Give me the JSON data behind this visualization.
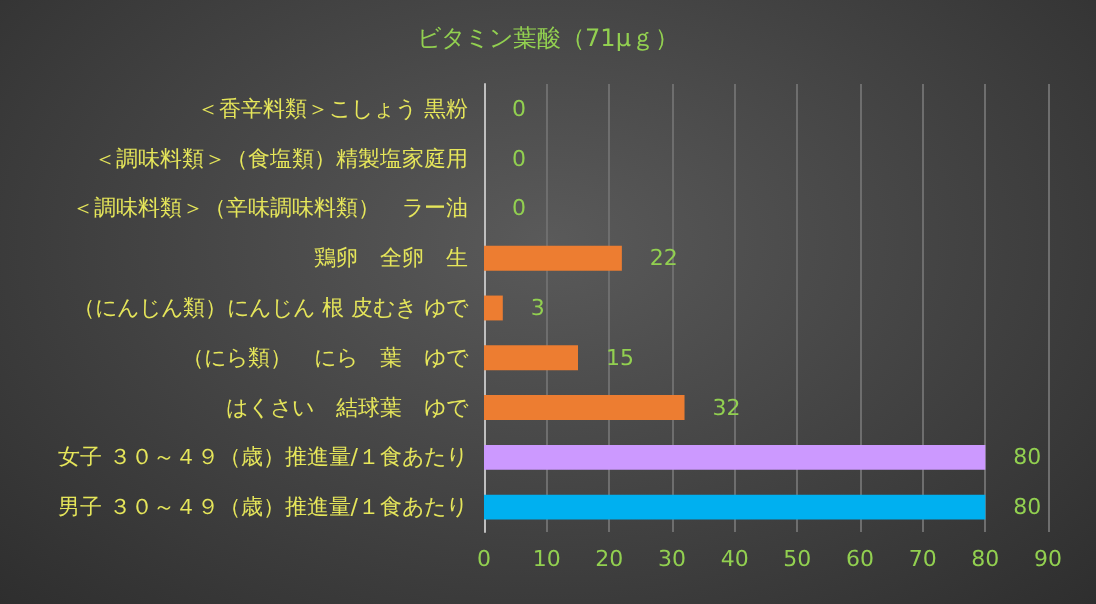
{
  "chart_data": {
    "type": "bar",
    "orientation": "horizontal",
    "title": "ビタミン葉酸（71μｇ）",
    "categories": [
      "＜香辛料類＞こしょう 黒粉",
      "＜調味料類＞（食塩類）精製塩家庭用",
      "＜調味料類＞（辛味調味料類）　ラー油",
      "鶏卵　全卵　生",
      "（にんじん類）にんじん 根 皮むき ゆで",
      "（にら類）　にら　葉　ゆで",
      "はくさい　結球葉　ゆで",
      "女子 ３０～４９（歳）推進量/１食あたり",
      "男子 ３０～４９（歳）推進量/１食あたり"
    ],
    "values": [
      0,
      0,
      0,
      22,
      3,
      15,
      32,
      80,
      80
    ],
    "colors": [
      "#ed7d31",
      "#ed7d31",
      "#ed7d31",
      "#ed7d31",
      "#ed7d31",
      "#ed7d31",
      "#ed7d31",
      "#cc99ff",
      "#00b0f0"
    ],
    "xlim": [
      0,
      90
    ],
    "xticks": [
      0,
      10,
      20,
      30,
      40,
      50,
      60,
      70,
      80,
      90
    ],
    "grid": "x",
    "data_labels": true
  }
}
